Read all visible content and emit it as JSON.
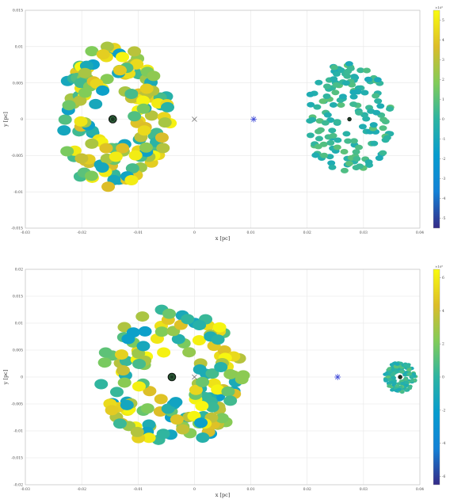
{
  "chart_data": [
    {
      "type": "scatter",
      "xlabel": "x [pc]",
      "ylabel": "y [pc]",
      "xlim": [
        -0.03,
        0.04
      ],
      "ylim": [
        -0.015,
        0.015
      ],
      "xticks": [
        "-0.03",
        "-0.02",
        "-0.01",
        "0",
        "0.01",
        "0.02",
        "0.03",
        "0.04"
      ],
      "yticks": [
        "-0.015",
        "-0.01",
        "-0.005",
        "0",
        "0.005",
        "0.01",
        "0.015"
      ],
      "grid": true,
      "markers": [
        {
          "name": "central-black-hole-1",
          "x": -0.0145,
          "y": 0.0
        },
        {
          "name": "central-black-hole-2",
          "x": 0.0275,
          "y": 0.0
        },
        {
          "name": "origin-cross",
          "x": 0.0,
          "y": 0.0
        },
        {
          "name": "center-of-mass-star",
          "x": 0.0105,
          "y": 0.0
        }
      ],
      "clusters": [
        {
          "center": [
            -0.0145,
            0.0
          ],
          "r_in": 0.0036,
          "r_out": 0.0102,
          "count": 150,
          "size": "large"
        },
        {
          "center": [
            0.0275,
            0.0
          ],
          "r_in": 0.0019,
          "r_out": 0.0078,
          "count": 150,
          "size": "small"
        }
      ],
      "colorbar": {
        "exponent": "×10⁶",
        "ticks": [
          "5",
          "4",
          "3",
          "2",
          "1",
          "0",
          "-1",
          "-2",
          "-3",
          "-4",
          "-5"
        ],
        "range": [
          -5.5,
          5.5
        ],
        "colormap": "parula"
      }
    },
    {
      "type": "scatter",
      "xlabel": "x [pc]",
      "ylabel": "y [pc]",
      "xlim": [
        -0.03,
        0.04
      ],
      "ylim": [
        -0.02,
        0.02
      ],
      "xticks": [
        "-0.03",
        "-0.02",
        "-0.01",
        "0",
        "0.01",
        "0.02",
        "0.03",
        "0.04"
      ],
      "yticks": [
        "-0.02",
        "-0.015",
        "-0.01",
        "-0.005",
        "0",
        "0.005",
        "0.01",
        "0.015",
        "0.02"
      ],
      "grid": true,
      "markers": [
        {
          "name": "central-black-hole-1",
          "x": -0.004,
          "y": 0.0
        },
        {
          "name": "central-black-hole-2",
          "x": 0.0365,
          "y": 0.0
        },
        {
          "name": "origin-cross",
          "x": 0.0,
          "y": 0.0
        },
        {
          "name": "center-of-mass-star",
          "x": 0.0254,
          "y": 0.0
        }
      ],
      "clusters": [
        {
          "center": [
            -0.004,
            0.0
          ],
          "r_in": 0.0045,
          "r_out": 0.0128,
          "count": 150,
          "size": "large"
        },
        {
          "center": [
            0.0365,
            0.0
          ],
          "r_in": 0.0008,
          "r_out": 0.0028,
          "count": 150,
          "size": "tiny"
        }
      ],
      "colorbar": {
        "exponent": "×10⁶",
        "ticks": [
          "6",
          "4",
          "2",
          "0",
          "-2",
          "-4",
          "-6"
        ],
        "range": [
          -6.5,
          6.5
        ],
        "colormap": "parula"
      }
    }
  ]
}
